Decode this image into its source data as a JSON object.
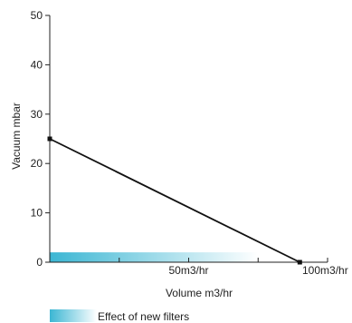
{
  "chart_data": {
    "type": "line",
    "xlabel": "Volume m3/hr",
    "ylabel": "Vacuum mbar",
    "xlim": [
      0,
      100
    ],
    "ylim": [
      0,
      50
    ],
    "x_ticks": [
      {
        "value": 0,
        "label": ""
      },
      {
        "value": 25,
        "label": ""
      },
      {
        "value": 50,
        "label": "50m3/hr"
      },
      {
        "value": 75,
        "label": ""
      },
      {
        "value": 100,
        "label": "100m3/hr"
      }
    ],
    "y_ticks": [
      {
        "value": 0,
        "label": "0"
      },
      {
        "value": 10,
        "label": "10"
      },
      {
        "value": 20,
        "label": "20"
      },
      {
        "value": 30,
        "label": "30"
      },
      {
        "value": 40,
        "label": "40"
      },
      {
        "value": 50,
        "label": "50"
      }
    ],
    "series": [
      {
        "x": [
          0,
          90
        ],
        "y": [
          25,
          0
        ],
        "color": "#111111"
      }
    ],
    "band": {
      "label": "Effect of new filters",
      "x_range": [
        0,
        75
      ],
      "y_range": [
        0,
        2
      ],
      "color_start": "#3bb6d3",
      "color_end": "#ffffff"
    },
    "legend": {
      "placement": "bottom-left",
      "label": "Effect of new filters"
    },
    "grid": false
  }
}
